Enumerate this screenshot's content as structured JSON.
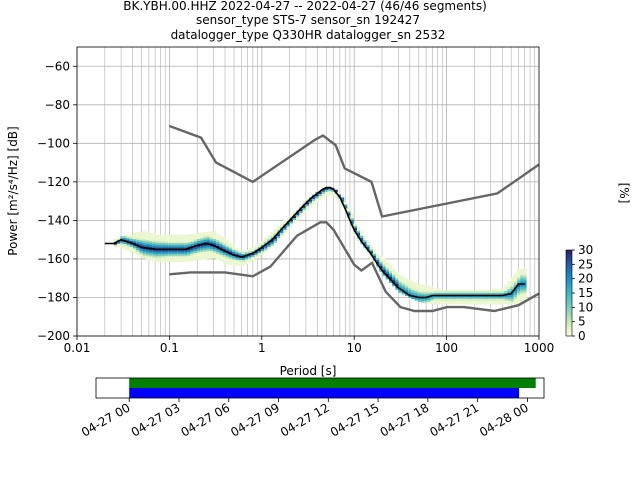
{
  "title": {
    "line1": "BK.YBH.00.HHZ   2022-04-27 -- 2022-04-27  (46/46 segments)",
    "line2": "sensor_type STS-7 sensor_sn 192427",
    "line3": "datalogger_type Q330HR datalogger_sn 2532"
  },
  "chart_data": [
    {
      "type": "heatmap",
      "subtype": "probabilistic-power-spectral-density",
      "xlabel": "Period [s]",
      "ylabel": "Power [m²/s⁴/Hz] [dB]",
      "x_scale": "log",
      "xlim": [
        0.01,
        1000
      ],
      "ylim": [
        -200,
        -50
      ],
      "xticks": [
        0.01,
        0.1,
        1,
        10,
        100,
        1000
      ],
      "xtick_labels": [
        "0.01",
        "0.1",
        "1",
        "10",
        "100",
        "1000"
      ],
      "yticks": [
        -200,
        -180,
        -160,
        -140,
        -120,
        -100,
        -80,
        -60
      ],
      "ytick_labels": [
        "−200",
        "−180",
        "−160",
        "−140",
        "−120",
        "−100",
        "−80",
        "−60"
      ],
      "grid": true,
      "colorbar": {
        "label": "[%]",
        "min": 0,
        "max": 30,
        "ticks": [
          0,
          5,
          10,
          15,
          20,
          25,
          30
        ],
        "tick_labels": [
          "0",
          "5",
          "10",
          "15",
          "20",
          "25",
          "30"
        ],
        "colormap": [
          "#ffffe0",
          "#c7e9b4",
          "#7fcdbb",
          "#41b6c4",
          "#1d91c0",
          "#225ea8",
          "#2c1f60"
        ]
      },
      "mode_curve": {
        "name": "mode",
        "color": "#000000",
        "x": [
          0.02,
          0.025,
          0.03,
          0.04,
          0.05,
          0.07,
          0.1,
          0.15,
          0.2,
          0.25,
          0.3,
          0.4,
          0.5,
          0.6,
          0.7,
          0.8,
          1,
          1.3,
          1.6,
          2,
          2.5,
          3,
          3.5,
          4,
          4.5,
          5,
          5.5,
          6,
          7,
          8,
          9,
          10,
          12,
          15,
          18,
          20,
          25,
          30,
          40,
          50,
          60,
          70,
          80,
          100,
          150,
          200,
          300,
          400,
          500,
          600,
          700
        ],
        "y": [
          -152,
          -152,
          -150,
          -152,
          -154,
          -155,
          -155,
          -155,
          -153,
          -152,
          -153,
          -156,
          -158,
          -159,
          -158,
          -157,
          -154,
          -150,
          -145,
          -140,
          -135,
          -131,
          -128,
          -126,
          -124,
          -123,
          -123,
          -124,
          -128,
          -134,
          -140,
          -145,
          -151,
          -157,
          -163,
          -166,
          -171,
          -175,
          -179,
          -180,
          -180,
          -179,
          -179,
          -179,
          -179,
          -179,
          -179,
          -179,
          -178,
          -173,
          -173
        ]
      },
      "noise_models": [
        {
          "name": "NHNM",
          "color": "#666666",
          "x": [
            0.1,
            0.22,
            0.32,
            0.8,
            3.8,
            4.6,
            6.3,
            7.9,
            15.4,
            20,
            354.8,
            1000
          ],
          "y": [
            -91,
            -97,
            -110,
            -120,
            -98,
            -96,
            -101,
            -113,
            -120,
            -138,
            -126,
            -111
          ]
        },
        {
          "name": "NLNM",
          "color": "#666666",
          "x": [
            0.1,
            0.17,
            0.4,
            0.8,
            1.24,
            2.4,
            4.3,
            5,
            6,
            10,
            12,
            15.6,
            21.9,
            31.6,
            45,
            70,
            101,
            154,
            328,
            600,
            1000
          ],
          "y": [
            -168,
            -167,
            -167,
            -169,
            -164,
            -148,
            -141,
            -141,
            -145,
            -163,
            -166,
            -162,
            -177,
            -185,
            -187,
            -187,
            -185,
            -185,
            -187,
            -184,
            -178
          ]
        }
      ],
      "density_spread": {
        "x": [
          0.025,
          0.03,
          0.05,
          0.07,
          0.1,
          0.15,
          0.2,
          0.3,
          0.4,
          0.5,
          0.6,
          0.8,
          1,
          1.5,
          2,
          3,
          4,
          5,
          6,
          8,
          10,
          15,
          20,
          30,
          50,
          70,
          100,
          200,
          400,
          600,
          700
        ],
        "y_high": [
          -150,
          -148,
          -146,
          -147,
          -148,
          -148,
          -147,
          -146,
          -150,
          -154,
          -156,
          -154,
          -150,
          -143,
          -137,
          -129,
          -125,
          -123,
          -124,
          -131,
          -141,
          -154,
          -160,
          -168,
          -174,
          -175,
          -177,
          -177,
          -175,
          -165,
          -165
        ],
        "y_low": [
          -153,
          -154,
          -159,
          -161,
          -161,
          -161,
          -160,
          -159,
          -162,
          -163,
          -163,
          -160,
          -157,
          -149,
          -143,
          -134,
          -129,
          -126,
          -127,
          -136,
          -148,
          -160,
          -168,
          -177,
          -182,
          -183,
          -183,
          -183,
          -183,
          -183,
          -182
        ]
      }
    },
    {
      "type": "timeline",
      "xlim": [
        "2022-04-26 22:00",
        "2022-04-28 01:00"
      ],
      "xtick_labels": [
        "04-27 00",
        "04-27 03",
        "04-27 06",
        "04-27 09",
        "04-27 12",
        "04-27 15",
        "04-27 18",
        "04-27 21",
        "04-28 00"
      ],
      "xticks": [
        "2022-04-27 00:00",
        "2022-04-27 03:00",
        "2022-04-27 06:00",
        "2022-04-27 09:00",
        "2022-04-27 12:00",
        "2022-04-27 15:00",
        "2022-04-27 18:00",
        "2022-04-27 21:00",
        "2022-04-28 00:00"
      ],
      "bars": [
        {
          "name": "data",
          "color": "#008000",
          "start": "2022-04-27 00:00",
          "end": "2022-04-28 00:30"
        },
        {
          "name": "psd segments",
          "color": "#0000ff",
          "start": "2022-04-27 00:00",
          "end": "2022-04-27 23:30"
        }
      ]
    }
  ]
}
